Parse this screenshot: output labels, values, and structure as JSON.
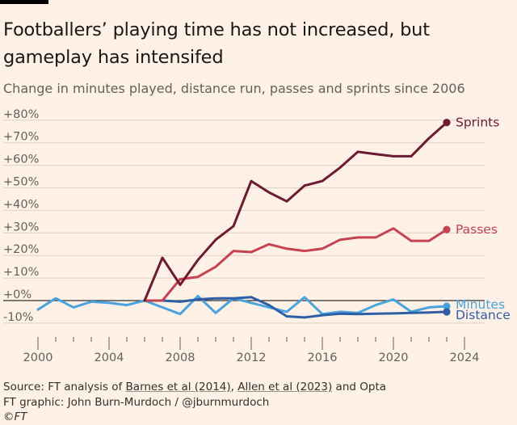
{
  "title": "Footballers’ playing time has not increased, but gameplay has intensifed",
  "subtitle": "Change in minutes played, distance run, passes and sprints since 2006",
  "source": {
    "prefix": "Source: FT analysis of ",
    "ref1": "Barnes et al (2014)",
    "sep": ", ",
    "ref2": "Allen et al (2023)",
    "suffix": " and Opta"
  },
  "credit": "FT graphic: John Burn-Murdoch / @jburnmurdoch",
  "copyright": "©FT",
  "chart_data": {
    "type": "line",
    "ylabel": "",
    "xlabel": "",
    "xlim": [
      2000,
      2025
    ],
    "ylim": [
      -14,
      82
    ],
    "y_ticks": [
      -10,
      0,
      10,
      20,
      30,
      40,
      50,
      60,
      70,
      80
    ],
    "y_tick_labels": [
      "-10%",
      "+0%",
      "+10%",
      "+20%",
      "+30%",
      "+40%",
      "+50%",
      "+60%",
      "+70%",
      "+80%"
    ],
    "x_ticks": [
      2000,
      2004,
      2008,
      2012,
      2016,
      2020,
      2024
    ],
    "x_tick_labels": [
      "2000",
      "2004",
      "2008",
      "2012",
      "2016",
      "2020",
      "2024"
    ],
    "grid": "horizontal",
    "legend": "inline labels at line ends",
    "series": [
      {
        "name": "Sprints",
        "color": "#6e1a33",
        "x": [
          2006,
          2007,
          2008,
          2009,
          2010,
          2011,
          2012,
          2013,
          2014,
          2015,
          2016,
          2017,
          2018,
          2019,
          2020,
          2021,
          2022,
          2023
        ],
        "y": [
          0,
          19,
          7,
          18,
          27,
          33,
          53,
          48,
          44,
          51,
          53,
          59,
          66,
          65,
          64,
          64,
          72,
          79
        ]
      },
      {
        "name": "Passes",
        "color": "#c7424f",
        "x": [
          2006,
          2007,
          2008,
          2009,
          2010,
          2011,
          2012,
          2013,
          2014,
          2015,
          2016,
          2017,
          2018,
          2019,
          2020,
          2021,
          2022,
          2023
        ],
        "y": [
          0,
          0,
          9.5,
          10.5,
          15,
          22,
          21.5,
          25,
          23,
          22,
          23,
          27,
          28,
          28,
          32,
          26.5,
          26.5,
          31.5
        ]
      },
      {
        "name": "Minutes",
        "color": "#4aa3df",
        "x": [
          2000,
          2001,
          2002,
          2003,
          2004,
          2005,
          2006,
          2007,
          2008,
          2009,
          2010,
          2011,
          2012,
          2013,
          2014,
          2015,
          2016,
          2017,
          2018,
          2019,
          2020,
          2021,
          2022,
          2023
        ],
        "y": [
          -4,
          1,
          -3,
          -0.5,
          -1,
          -2,
          0,
          -3,
          -6,
          2,
          -5.5,
          1,
          -1,
          -3,
          -5,
          1.5,
          -6,
          -5,
          -5.5,
          -2,
          0.5,
          -5,
          -3,
          -2.5
        ]
      },
      {
        "name": "Distance",
        "color": "#2e5ea6",
        "x": [
          2006,
          2007,
          2008,
          2009,
          2010,
          2011,
          2012,
          2013,
          2014,
          2015,
          2016,
          2017,
          2018,
          2019,
          2020,
          2021,
          2022,
          2023
        ],
        "y": [
          0,
          0,
          -0.5,
          0.5,
          1,
          1,
          1.5,
          -2,
          -7,
          -7.5,
          -6.5,
          -5.8,
          -6,
          -5.8,
          -5.7,
          -5.5,
          -5.3,
          -5
        ]
      }
    ]
  }
}
